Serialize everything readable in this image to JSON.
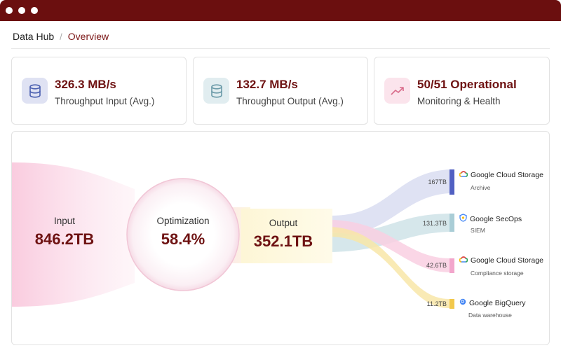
{
  "breadcrumb": {
    "root": "Data Hub",
    "separator": "/",
    "current": "Overview"
  },
  "stats": [
    {
      "value": "326.3 MB/s",
      "label": "Throughput Input (Avg.)",
      "icon": "database-icon",
      "color": "#4a5fb0"
    },
    {
      "value": "132.7 MB/s",
      "label": "Throughput Output (Avg.)",
      "icon": "database-icon",
      "color": "#6a9aa8"
    },
    {
      "value": "50/51 Operational",
      "label": "Monitoring & Health",
      "icon": "trend-up-icon",
      "color": "#d96b8a"
    }
  ],
  "flow": {
    "input": {
      "label": "Input",
      "value": "846.2TB"
    },
    "optimization": {
      "label": "Optimization",
      "value": "58.4%"
    },
    "output": {
      "label": "Output",
      "value": "352.1TB"
    },
    "destinations": [
      {
        "volume": "167TB",
        "name": "Google Cloud Storage",
        "subtitle": "Archive",
        "icon": "google-cloud-icon",
        "color": "#5160c2"
      },
      {
        "volume": "131.3TB",
        "name": "Google SecOps",
        "subtitle": "SIEM",
        "icon": "shield-icon",
        "color": "#a9cdd6"
      },
      {
        "volume": "42.6TB",
        "name": "Google Cloud Storage",
        "subtitle": "Compliance storage",
        "icon": "google-cloud-icon",
        "color": "#f2a6cc"
      },
      {
        "volume": "11.2TB",
        "name": "Google BigQuery",
        "subtitle": "Data warehouse",
        "icon": "bigquery-icon",
        "color": "#f2c84b"
      }
    ]
  }
}
